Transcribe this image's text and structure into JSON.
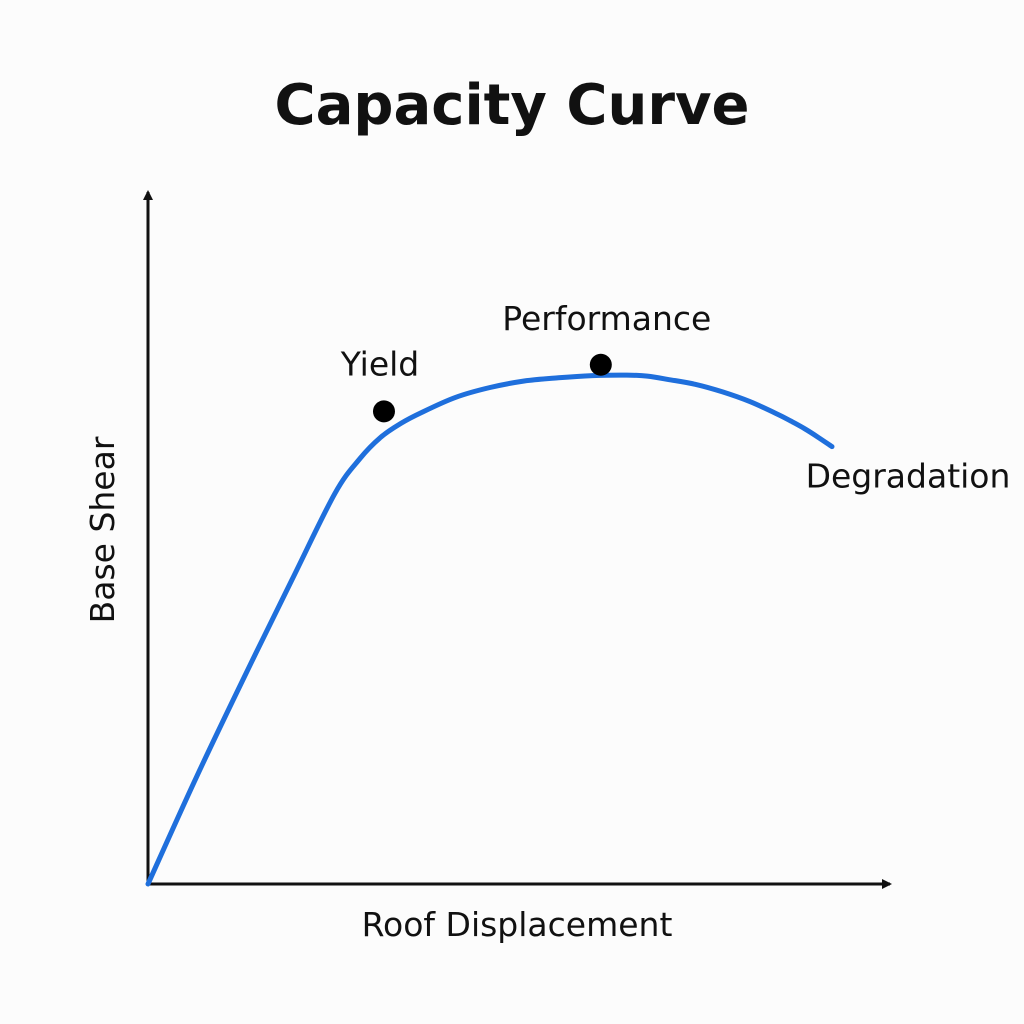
{
  "chart_data": {
    "type": "line",
    "title": "Capacity Curve",
    "xlabel": "Roof Displacement",
    "ylabel": "Base Shear",
    "xlim": [
      0,
      100
    ],
    "ylim": [
      0,
      100
    ],
    "grid": false,
    "tick_labels": false,
    "line_color": "#1f6fdc",
    "series": [
      {
        "x": [
          0,
          7,
          14,
          21,
          27.3,
          31,
          34,
          37,
          40,
          45,
          50,
          55,
          60,
          65,
          70,
          73,
          76,
          80,
          84,
          88,
          92,
          94,
          96,
          98,
          100
        ],
        "y": [
          0,
          19.5,
          38,
          56,
          72,
          78.5,
          82.4,
          85,
          87,
          89.8,
          91.6,
          92.8,
          93.4,
          93.8,
          93.9,
          93.7,
          93.1,
          92.2,
          90.8,
          89,
          86.7,
          85.4,
          84,
          82.4,
          80.7
        ]
      }
    ],
    "annotations": [
      {
        "label": "Yield",
        "x": 34.5,
        "y": 87.2,
        "marker": true
      },
      {
        "label": "Performance",
        "x": 66.2,
        "y": 95.8,
        "marker": true
      },
      {
        "label": "Degradation",
        "x": 100,
        "y": 80.7,
        "marker": false
      }
    ]
  }
}
